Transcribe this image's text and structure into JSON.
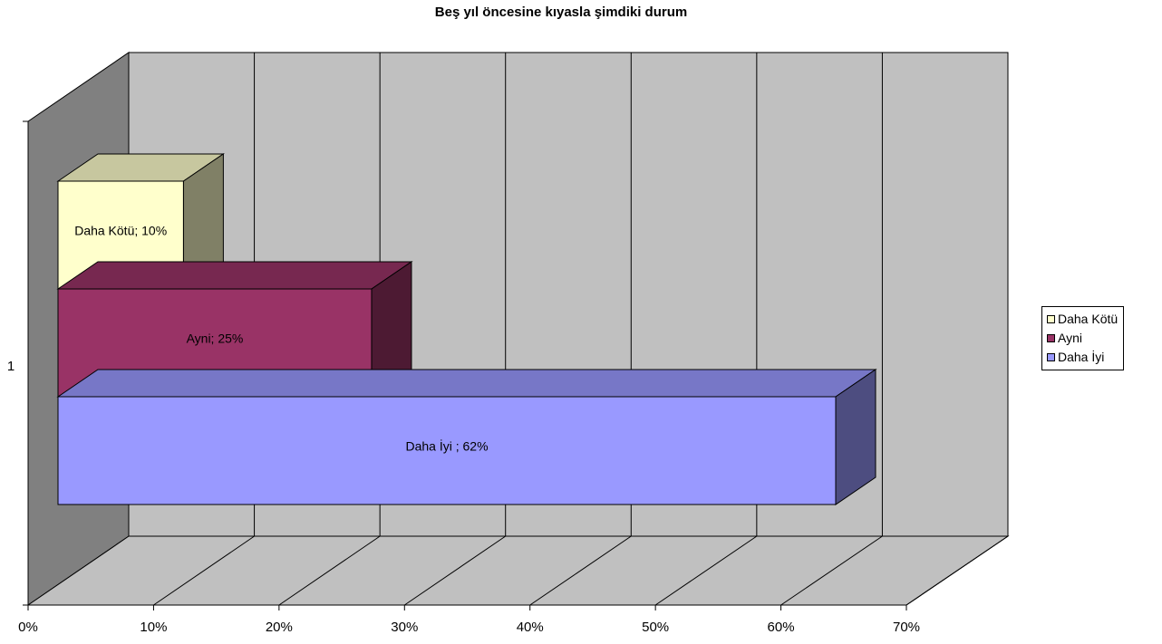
{
  "chart_data": {
    "type": "bar",
    "orientation": "horizontal",
    "stacking": "stacked-3d",
    "title": "Beş yıl öncesine kıyasla şimdiki durum",
    "categories": [
      "1"
    ],
    "xlim": [
      0,
      0.7
    ],
    "x_ticks": [
      "0%",
      "10%",
      "20%",
      "30%",
      "40%",
      "50%",
      "60%",
      "70%"
    ],
    "grid": true,
    "legend_position": "right",
    "series": [
      {
        "name": "Daha İyi",
        "value": 0.62,
        "label": "Daha İyi ; 62%",
        "color": "#9999ff"
      },
      {
        "name": "Ayni",
        "value": 0.25,
        "label": "Ayni; 25%",
        "color": "#993366"
      },
      {
        "name": "Daha Kötü",
        "value": 0.1,
        "label": "Daha Kötü; 10%",
        "color": "#ffffcc"
      }
    ],
    "legend_order": [
      "Daha Kötü",
      "Ayni",
      "Daha İyi"
    ]
  }
}
